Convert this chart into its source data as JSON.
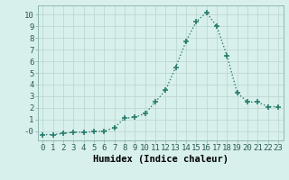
{
  "x": [
    0,
    1,
    2,
    3,
    4,
    5,
    6,
    7,
    8,
    9,
    10,
    11,
    12,
    13,
    14,
    15,
    16,
    17,
    18,
    19,
    20,
    21,
    22,
    23
  ],
  "y": [
    -0.3,
    -0.3,
    -0.2,
    -0.1,
    -0.1,
    -0.05,
    0.0,
    0.3,
    1.1,
    1.2,
    1.5,
    2.5,
    3.5,
    5.5,
    7.7,
    9.4,
    10.2,
    9.0,
    6.5,
    3.3,
    2.5,
    2.5,
    2.1,
    2.1
  ],
  "line_color": "#2a7d6e",
  "marker": "+",
  "marker_size": 4,
  "bg_color": "#d8f0ec",
  "grid_color": "#c0d8d4",
  "xlabel": "Humidex (Indice chaleur)",
  "xlim": [
    -0.5,
    23.5
  ],
  "ylim": [
    -0.8,
    10.8
  ],
  "yticks": [
    0,
    1,
    2,
    3,
    4,
    5,
    6,
    7,
    8,
    9,
    10
  ],
  "ytick_labels": [
    "-0",
    "1",
    "2",
    "3",
    "4",
    "5",
    "6",
    "7",
    "8",
    "9",
    "10"
  ],
  "xtick_labels": [
    "0",
    "1",
    "2",
    "3",
    "4",
    "5",
    "6",
    "7",
    "8",
    "9",
    "10",
    "11",
    "12",
    "13",
    "14",
    "15",
    "16",
    "17",
    "18",
    "19",
    "20",
    "21",
    "22",
    "23"
  ],
  "xlabel_fontsize": 7.5,
  "tick_fontsize": 6.5,
  "line_width": 1.0,
  "line_style": ":"
}
